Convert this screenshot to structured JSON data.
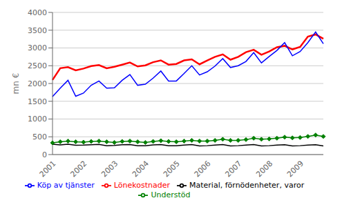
{
  "chart_data": {
    "type": "line",
    "ylabel": "mn €",
    "categories": [
      "2001",
      null,
      null,
      null,
      "2002",
      null,
      null,
      null,
      "2003",
      null,
      null,
      null,
      "2004",
      null,
      null,
      null,
      "2005",
      null,
      null,
      null,
      "2006",
      null,
      null,
      null,
      "2007",
      null,
      null,
      null,
      "2008",
      null,
      null,
      null,
      "2009",
      null,
      null,
      null
    ],
    "series": [
      {
        "name": "Lönekostnader",
        "color": "#ff0000",
        "values": [
          2100,
          2430,
          2460,
          2370,
          2420,
          2490,
          2520,
          2430,
          2470,
          2530,
          2590,
          2480,
          2510,
          2600,
          2650,
          2530,
          2550,
          2650,
          2680,
          2540,
          2650,
          2750,
          2820,
          2670,
          2750,
          2880,
          2950,
          2810,
          2900,
          3020,
          3060,
          2960,
          3030,
          3320,
          3380,
          3260
        ]
      },
      {
        "name": "Köp av tjänster",
        "color": "#0000ff",
        "values": [
          1630,
          1870,
          2090,
          1640,
          1730,
          1950,
          2070,
          1870,
          1880,
          2090,
          2250,
          1950,
          1980,
          2150,
          2350,
          2070,
          2070,
          2280,
          2500,
          2240,
          2330,
          2490,
          2700,
          2450,
          2500,
          2620,
          2870,
          2580,
          2760,
          2930,
          3150,
          2780,
          2900,
          3150,
          3450,
          3120
        ]
      },
      {
        "name": "Understöd",
        "color": "#008000",
        "marker": "diamond",
        "values": [
          330,
          360,
          380,
          360,
          350,
          370,
          380,
          360,
          340,
          370,
          380,
          360,
          340,
          370,
          390,
          370,
          360,
          380,
          400,
          380,
          380,
          400,
          430,
          400,
          400,
          420,
          460,
          430,
          440,
          460,
          490,
          470,
          480,
          510,
          550,
          510
        ]
      },
      {
        "name": "Material, förnödenheter, varor",
        "color": "#000000",
        "values": [
          290,
          270,
          290,
          260,
          265,
          275,
          285,
          250,
          255,
          275,
          280,
          250,
          250,
          270,
          280,
          250,
          250,
          265,
          280,
          245,
          250,
          265,
          280,
          245,
          250,
          265,
          280,
          245,
          250,
          265,
          275,
          245,
          250,
          265,
          275,
          245
        ]
      }
    ],
    "ylim": [
      0,
      4000
    ],
    "yticks": [
      0,
      500,
      1000,
      1500,
      2000,
      2500,
      3000,
      3500,
      4000
    ],
    "grid": true,
    "legend": "bottom"
  }
}
